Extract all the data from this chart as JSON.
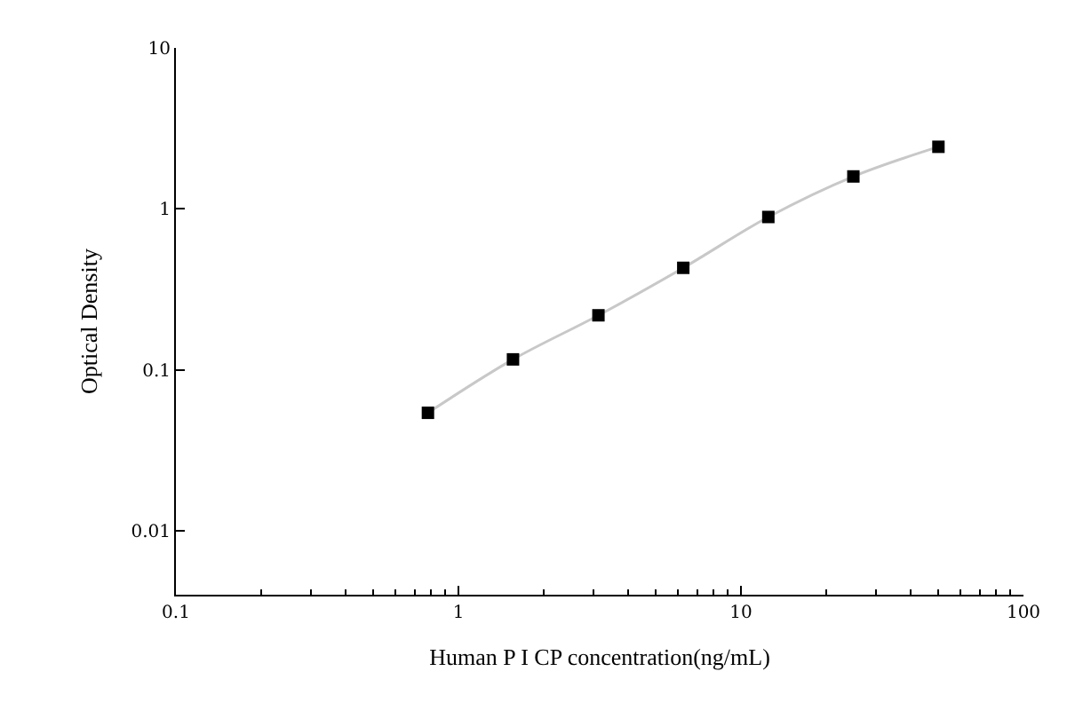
{
  "chart_data": {
    "type": "scatter",
    "xlabel": "Human P I CP concentration(ng/mL)",
    "ylabel": "Optical Density",
    "log": "xy",
    "xlim": [
      0.1,
      100
    ],
    "xticks": [
      0.1,
      1,
      10,
      100
    ],
    "ylim": [
      0.004,
      10
    ],
    "yticks": [
      0.01,
      0.1,
      1,
      10
    ],
    "series": [
      {
        "type": "line",
        "color": "#c8c8c8",
        "marker": "none",
        "line_style": "solid",
        "x": [
          0.78,
          1.56,
          3.13,
          6.25,
          12.5,
          25,
          50
        ],
        "values": [
          0.054,
          0.116,
          0.218,
          0.43,
          0.89,
          1.59,
          2.43
        ]
      },
      {
        "color": "#000000",
        "marker": "square",
        "x": [
          0.78,
          1.56,
          3.13,
          6.25,
          12.5,
          25,
          50
        ],
        "values": [
          0.054,
          0.116,
          0.218,
          0.43,
          0.89,
          1.59,
          2.43
        ]
      }
    ]
  }
}
